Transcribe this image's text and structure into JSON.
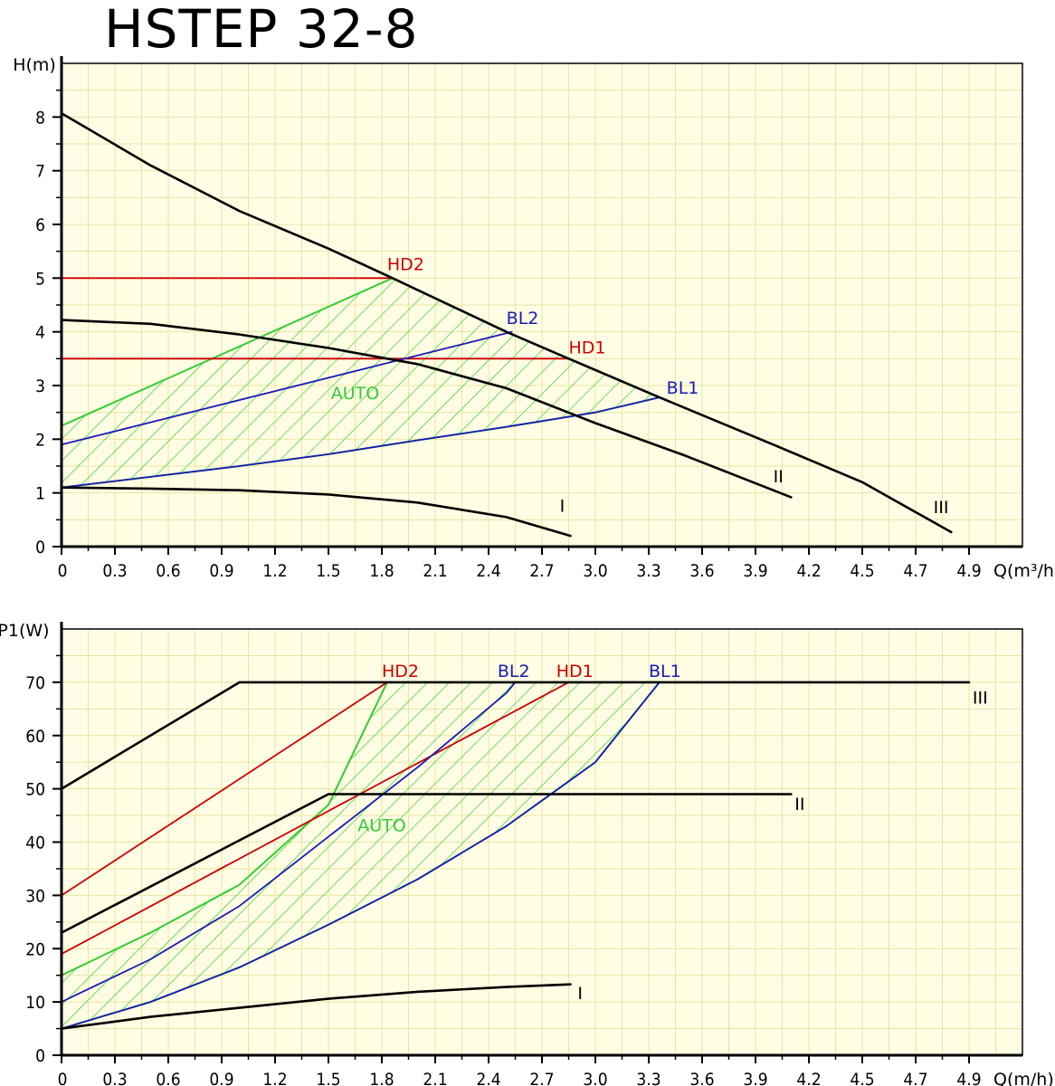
{
  "title": "HSTEP 32-8",
  "colors": {
    "grid": "#e6e6a4",
    "background": "#fffde4",
    "red": "#cc0000",
    "blue": "#1a1ab4",
    "green": "#33cc33",
    "black": "#000000"
  },
  "chart_data": [
    {
      "type": "line",
      "ylabel": "H(m)",
      "xlabel": "Q(m³/h)",
      "xlim": [
        0,
        5.1
      ],
      "ylim": [
        0,
        9
      ],
      "x_ticks": [
        "0",
        "0.3",
        "0.6",
        "0.9",
        "1.2",
        "1.5",
        "1.8",
        "2.1",
        "2.4",
        "2.7",
        "3.0",
        "3.3",
        "3.6",
        "3.9",
        "4.2",
        "4.5",
        "4.7",
        "4.9"
      ],
      "y_ticks": [
        "0",
        "1",
        "2",
        "3",
        "4",
        "5",
        "6",
        "7",
        "8"
      ],
      "grid": true,
      "series": [
        {
          "name": "III",
          "color": "black",
          "points": [
            [
              0,
              8.07
            ],
            [
              0.5,
              7.1
            ],
            [
              1,
              6.25
            ],
            [
              1.5,
              5.55
            ],
            [
              1.86,
              5.0
            ],
            [
              2.5,
              4.0
            ],
            [
              2.85,
              3.5
            ],
            [
              3.36,
              2.78
            ],
            [
              4,
              1.9
            ],
            [
              4.5,
              1.2
            ],
            [
              5.0,
              0.27
            ]
          ]
        },
        {
          "name": "II",
          "color": "black",
          "points": [
            [
              0,
              4.22
            ],
            [
              0.5,
              4.15
            ],
            [
              1,
              3.95
            ],
            [
              1.5,
              3.7
            ],
            [
              2,
              3.4
            ],
            [
              2.5,
              2.95
            ],
            [
              3,
              2.3
            ],
            [
              3.5,
              1.7
            ],
            [
              4.1,
              0.92
            ]
          ]
        },
        {
          "name": "I",
          "color": "black",
          "points": [
            [
              0,
              1.1
            ],
            [
              0.5,
              1.08
            ],
            [
              1,
              1.05
            ],
            [
              1.5,
              0.97
            ],
            [
              2,
              0.82
            ],
            [
              2.5,
              0.55
            ],
            [
              2.86,
              0.2
            ]
          ]
        },
        {
          "name": "HD2",
          "color": "red",
          "points": [
            [
              0,
              5.0
            ],
            [
              1.86,
              5.0
            ]
          ]
        },
        {
          "name": "HD1",
          "color": "red",
          "points": [
            [
              0,
              3.5
            ],
            [
              2.85,
              3.5
            ]
          ]
        },
        {
          "name": "BL2",
          "color": "blue",
          "points": [
            [
              0,
              1.9
            ],
            [
              2.53,
              4.0
            ]
          ]
        },
        {
          "name": "BL1",
          "color": "blue",
          "points": [
            [
              0,
              1.1
            ],
            [
              0.5,
              1.3
            ],
            [
              1,
              1.5
            ],
            [
              1.5,
              1.72
            ],
            [
              2,
              1.98
            ],
            [
              2.5,
              2.23
            ],
            [
              3,
              2.5
            ],
            [
              3.36,
              2.78
            ]
          ]
        }
      ],
      "region": {
        "label": "AUTO",
        "label_at": [
          1.65,
          2.75
        ],
        "outline": [
          [
            0,
            1.1
          ],
          [
            0,
            2.25
          ],
          [
            1.86,
            5.0
          ],
          [
            2.5,
            4.0
          ],
          [
            2.85,
            3.5
          ],
          [
            3.36,
            2.78
          ],
          [
            3,
            2.5
          ],
          [
            2.5,
            2.23
          ],
          [
            2,
            1.98
          ],
          [
            1.5,
            1.72
          ],
          [
            1,
            1.5
          ],
          [
            0.5,
            1.3
          ]
        ]
      },
      "labels": [
        {
          "text": "HD2",
          "color": "red",
          "at": [
            1.83,
            5.15
          ]
        },
        {
          "text": "BL2",
          "color": "blue",
          "at": [
            2.5,
            4.15
          ]
        },
        {
          "text": "HD1",
          "color": "red",
          "at": [
            2.85,
            3.6
          ]
        },
        {
          "text": "BL1",
          "color": "blue",
          "at": [
            3.4,
            2.85
          ]
        },
        {
          "text": "II",
          "color": "black",
          "at": [
            4.0,
            1.2
          ]
        },
        {
          "text": "III",
          "color": "black",
          "at": [
            4.9,
            0.62
          ]
        },
        {
          "text": "I",
          "color": "black",
          "at": [
            2.8,
            0.65
          ]
        }
      ]
    },
    {
      "type": "line",
      "ylabel": "P1(W)",
      "xlabel": "Q(m/h)",
      "xlim": [
        0,
        5.1
      ],
      "ylim": [
        0,
        80
      ],
      "x_ticks": [
        "0",
        "0.3",
        "0.6",
        "0.9",
        "1.2",
        "1.5",
        "1.8",
        "2.1",
        "2.4",
        "2.7",
        "3.0",
        "3.3",
        "3.6",
        "3.9",
        "4.2",
        "4.5",
        "4.7",
        "4.9"
      ],
      "y_ticks": [
        "0",
        "10",
        "20",
        "30",
        "40",
        "50",
        "60",
        "70"
      ],
      "grid": true,
      "series": [
        {
          "name": "III",
          "color": "black",
          "points": [
            [
              0,
              50
            ],
            [
              1.0,
              70
            ],
            [
              5.1,
              70
            ]
          ]
        },
        {
          "name": "II",
          "color": "black",
          "points": [
            [
              0,
              23
            ],
            [
              1.5,
              49
            ],
            [
              4.1,
              49
            ]
          ]
        },
        {
          "name": "I",
          "color": "black",
          "points": [
            [
              0,
              5
            ],
            [
              0.5,
              7.2
            ],
            [
              1,
              8.9
            ],
            [
              1.5,
              10.6
            ],
            [
              2,
              11.9
            ],
            [
              2.5,
              12.8
            ],
            [
              2.86,
              13.3
            ]
          ]
        },
        {
          "name": "HD2",
          "color": "red",
          "points": [
            [
              0,
              30
            ],
            [
              1.83,
              70
            ]
          ]
        },
        {
          "name": "HD1",
          "color": "red",
          "points": [
            [
              0,
              19
            ],
            [
              2.85,
              70
            ]
          ]
        },
        {
          "name": "BL2",
          "color": "blue",
          "points": [
            [
              0,
              10
            ],
            [
              0.5,
              18
            ],
            [
              1,
              28
            ],
            [
              1.5,
              41
            ],
            [
              2,
              54
            ],
            [
              2.5,
              68
            ],
            [
              2.55,
              70
            ]
          ]
        },
        {
          "name": "BL1",
          "color": "blue",
          "points": [
            [
              0,
              5
            ],
            [
              0.5,
              10
            ],
            [
              1,
              16.5
            ],
            [
              1.5,
              24.5
            ],
            [
              2,
              33
            ],
            [
              2.5,
              43
            ],
            [
              3,
              55
            ],
            [
              3.36,
              70
            ]
          ]
        }
      ],
      "region": {
        "label": "AUTO",
        "label_at": [
          1.8,
          42
        ],
        "outline": [
          [
            0,
            5
          ],
          [
            0,
            15
          ],
          [
            0.5,
            23
          ],
          [
            1,
            32
          ],
          [
            1.5,
            47
          ],
          [
            1.83,
            70
          ],
          [
            3.36,
            70
          ],
          [
            3,
            55
          ],
          [
            2.5,
            43
          ],
          [
            2,
            33
          ],
          [
            1.5,
            24.5
          ],
          [
            1,
            16.5
          ],
          [
            0.5,
            10
          ]
        ]
      },
      "labels": [
        {
          "text": "HD2",
          "color": "red",
          "at": [
            1.8,
            71
          ]
        },
        {
          "text": "BL2",
          "color": "blue",
          "at": [
            2.45,
            71
          ]
        },
        {
          "text": "HD1",
          "color": "red",
          "at": [
            2.78,
            71
          ]
        },
        {
          "text": "BL1",
          "color": "blue",
          "at": [
            3.3,
            71
          ]
        },
        {
          "text": "III",
          "color": "black",
          "at": [
            5.12,
            66
          ]
        },
        {
          "text": "II",
          "color": "black",
          "at": [
            4.12,
            46
          ]
        },
        {
          "text": "I",
          "color": "black",
          "at": [
            2.9,
            10.5
          ]
        }
      ]
    }
  ]
}
